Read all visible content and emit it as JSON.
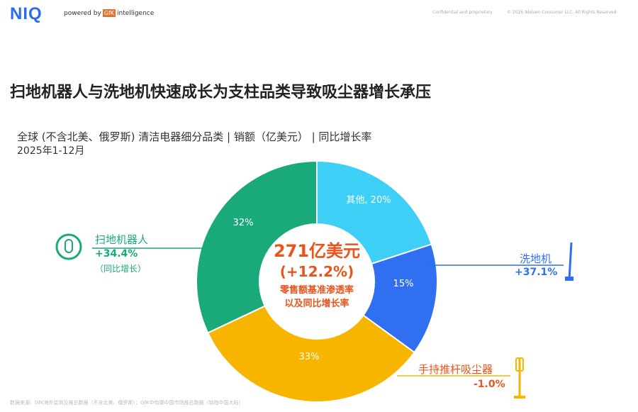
{
  "header": {
    "logo": "NIQ",
    "powered_by": "powered by",
    "gfk": "GfK",
    "intelligence": "intelligence",
    "confidential": "Confidential and proprietary",
    "copyright": "© 2026 Nielsen Consumer LLC. All Rights Reserved"
  },
  "title": "扫地机器人与洗地机快速成长为支柱品类导致吸尘器增长承压",
  "subtitle_line1": "全球 (不含北美、俄罗斯) 清洁电器细分品类 | 销额（亿美元） | 同比增长率",
  "subtitle_line2": "2025年1-12月",
  "footer": "数据来源：GfK海外监测及推总数据（不含北美、俄罗斯）；GfK中怡康中国市场推总数据（特指中国大陆）",
  "chart_data": {
    "type": "pie",
    "donut": true,
    "center": {
      "total": "271亿美元",
      "growth": "(+12.2%)",
      "note1": "零售额基准渗透率",
      "note2": "以及同比增长率"
    },
    "slices": [
      {
        "name": "其他",
        "value": 20,
        "label": "其他, 20%",
        "color": "#3dcff5"
      },
      {
        "name": "洗地机",
        "value": 15,
        "label": "15%",
        "growth": "+37.1%",
        "color": "#2f6ff0"
      },
      {
        "name": "手持推杆吸尘器",
        "value": 33,
        "label": "33%",
        "growth": "-1.0%",
        "color": "#f7b500"
      },
      {
        "name": "扫地机器人",
        "value": 32,
        "label": "32%",
        "growth": "+34.4%",
        "growth_note": "（同比增长）",
        "color": "#1aa97a"
      }
    ]
  }
}
